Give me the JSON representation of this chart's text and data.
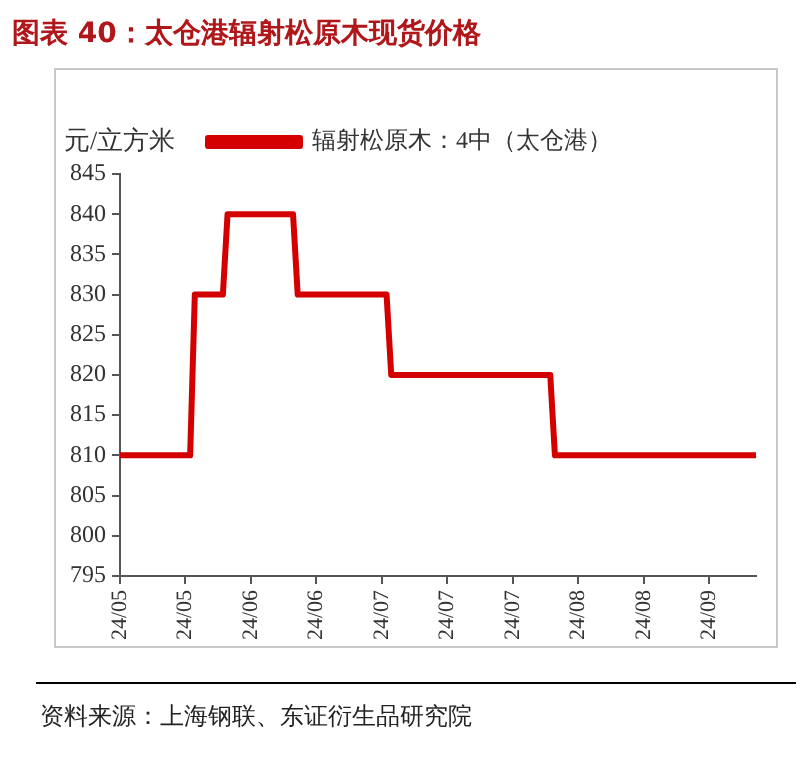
{
  "chart_data": {
    "type": "line",
    "title": "图表 40：太仓港辐射松原木现货价格",
    "ylabel": "元/立方米",
    "annotations": [
      "资料来源：上海钢联、东证衍生品研究院"
    ],
    "series": [
      {
        "name": "辐射松原木：4中（太仓港）",
        "color": "#d40000",
        "x": [
          "--05-06",
          "--05-21",
          "--05-22",
          "--05-28",
          "--05-29",
          "--06-12",
          "--06-13",
          "--07-02",
          "--07-03",
          "--08-06",
          "--08-07",
          "--09-19"
        ],
        "values": [
          810,
          810,
          830,
          830,
          840,
          840,
          830,
          830,
          820,
          820,
          810,
          810
        ]
      }
    ],
    "xlim": [
      "--05-06",
      "--09-19"
    ],
    "xticks": [
      {
        "value": "--05-06",
        "label": "24/05"
      },
      {
        "value": "--05-20",
        "label": "24/05"
      },
      {
        "value": "--06-03",
        "label": "24/06"
      },
      {
        "value": "--06-17",
        "label": "24/06"
      },
      {
        "value": "--07-01",
        "label": "24/07"
      },
      {
        "value": "--07-15",
        "label": "24/07"
      },
      {
        "value": "--07-29",
        "label": "24/07"
      },
      {
        "value": "--08-12",
        "label": "24/08"
      },
      {
        "value": "--08-26",
        "label": "24/08"
      },
      {
        "value": "--09-09",
        "label": "24/09"
      }
    ],
    "ylim": [
      795,
      845
    ],
    "yticks": [
      795,
      800,
      805,
      810,
      815,
      820,
      825,
      830,
      835,
      840,
      845
    ],
    "grid": false,
    "legend": "top",
    "marker": "none",
    "line_style": "solid"
  }
}
